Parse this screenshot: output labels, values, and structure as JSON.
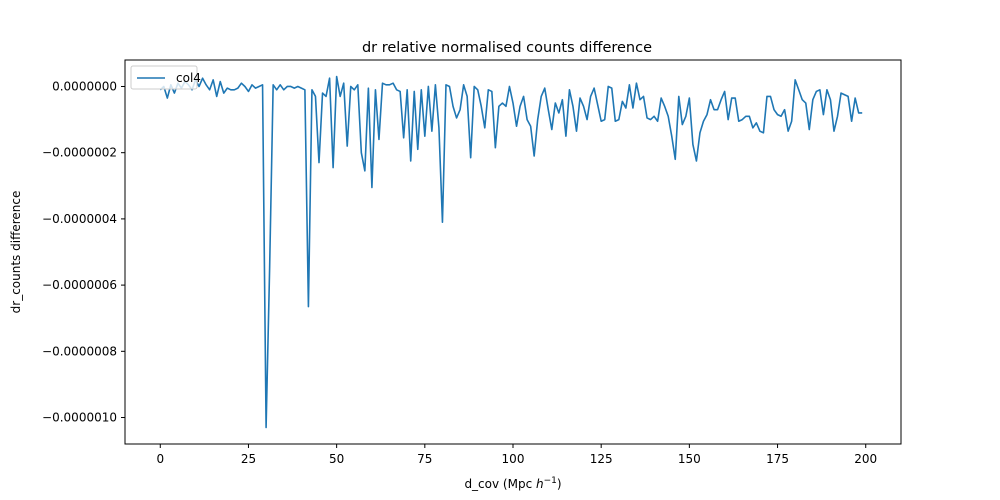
{
  "chart_data": {
    "type": "line",
    "title": "dr relative normalised counts difference",
    "xlabel_prefix": "d_cov (Mpc ",
    "xlabel_var": "h",
    "xlabel_exp": "−1",
    "xlabel_suffix": ")",
    "ylabel": "dr_counts difference",
    "xlim": [
      -10,
      210
    ],
    "ylim": [
      -1.08e-06,
      8e-08
    ],
    "xticks": [
      0,
      25,
      50,
      75,
      100,
      125,
      150,
      175,
      200
    ],
    "xtick_labels": [
      "0",
      "25",
      "50",
      "75",
      "100",
      "125",
      "150",
      "175",
      "200"
    ],
    "yticks": [
      0,
      -2e-07,
      -4e-07,
      -6e-07,
      -8e-07,
      -1e-06
    ],
    "ytick_labels": [
      "0.0000000",
      "−0.0000002",
      "−0.0000004",
      "−0.0000006",
      "−0.0000008",
      "−0.0000010"
    ],
    "grid": false,
    "legend_position": "upper-left",
    "series": [
      {
        "name": "col4",
        "color": "#1f77b4",
        "y_e7": [
          -0.1,
          0.0,
          -0.35,
          0.05,
          -0.2,
          0.1,
          -0.05,
          0.15,
          0.05,
          -0.1,
          0.2,
          0.0,
          0.25,
          0.05,
          -0.1,
          0.2,
          -0.3,
          0.15,
          -0.2,
          -0.05,
          -0.1,
          -0.1,
          -0.05,
          0.1,
          0.0,
          -0.15,
          0.05,
          -0.05,
          0.0,
          0.05,
          -10.3,
          -5.5,
          0.05,
          -0.1,
          0.05,
          -0.1,
          0.0,
          0.0,
          -0.05,
          0.0,
          -0.05,
          -0.1,
          -6.65,
          -0.1,
          -0.3,
          -2.3,
          -0.2,
          -0.3,
          0.25,
          -2.45,
          0.3,
          -0.3,
          0.1,
          -1.8,
          0.0,
          -0.1,
          0.05,
          -2.0,
          -2.55,
          -0.05,
          -3.05,
          -0.1,
          -1.6,
          0.1,
          0.05,
          0.05,
          0.1,
          -0.1,
          -0.15,
          -1.55,
          -0.1,
          -2.25,
          -0.15,
          -1.9,
          -0.1,
          -1.5,
          0.0,
          -1.35,
          0.05,
          -1.25,
          -4.1,
          0.05,
          0.0,
          -0.6,
          -0.95,
          -0.7,
          0.05,
          -0.3,
          -2.15,
          0.0,
          -0.1,
          -0.6,
          -1.25,
          -0.1,
          -0.15,
          -1.85,
          -0.6,
          -0.5,
          -0.6,
          0.0,
          -0.5,
          -1.2,
          -0.6,
          -0.3,
          -1.0,
          -1.2,
          -2.1,
          -1.0,
          -0.3,
          -0.05,
          -0.7,
          -1.3,
          -0.5,
          -0.8,
          -0.4,
          -1.5,
          -0.1,
          -0.6,
          -1.35,
          -0.35,
          -0.6,
          -1.0,
          -0.3,
          -0.05,
          -0.55,
          -1.05,
          -1.0,
          0.0,
          -0.05,
          -1.05,
          -1.0,
          -0.45,
          -0.65,
          0.05,
          -0.65,
          0.1,
          -0.4,
          -0.3,
          -0.95,
          -1.0,
          -0.9,
          -1.05,
          -0.35,
          -0.6,
          -0.9,
          -1.5,
          -2.2,
          -0.3,
          -1.15,
          -0.9,
          -0.35,
          -1.75,
          -2.25,
          -1.4,
          -1.05,
          -0.85,
          -0.4,
          -0.7,
          -0.7,
          -0.4,
          -0.15,
          -1.0,
          -0.35,
          -0.35,
          -1.05,
          -1.0,
          -0.9,
          -0.9,
          -1.25,
          -1.1,
          -1.35,
          -1.4,
          -0.3,
          -0.3,
          -0.7,
          -0.85,
          -0.9,
          -0.7,
          -1.35,
          -1.05,
          0.2,
          -0.1,
          -0.4,
          -0.5,
          -1.3,
          -0.4,
          -0.15,
          -0.1,
          -0.85,
          -0.1,
          -0.4,
          -1.35,
          -0.9,
          -0.2,
          -0.25,
          -0.3,
          -1.05,
          -0.35,
          -0.8,
          -0.8
        ],
        "y_scale": 1e-07
      }
    ]
  }
}
